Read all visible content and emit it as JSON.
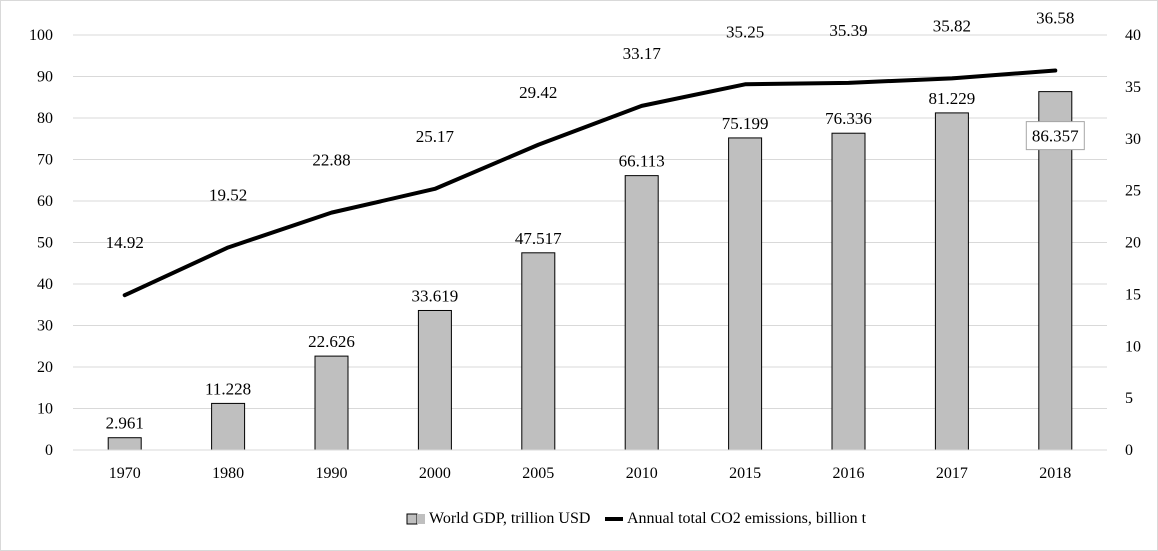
{
  "chart_data": {
    "type": "bar",
    "categories": [
      "1970",
      "1980",
      "1990",
      "2000",
      "2005",
      "2010",
      "2015",
      "2016",
      "2017",
      "2018"
    ],
    "series": [
      {
        "name": "World GDP, trillion USD",
        "type": "bar",
        "axis": "left",
        "values": [
          2.961,
          11.228,
          22.626,
          33.619,
          47.517,
          66.113,
          75.199,
          76.336,
          81.229,
          86.357
        ],
        "labels": [
          "2.961",
          "11.228",
          "22.626",
          "33.619",
          "47.517",
          "66.113",
          "75.199",
          "76.336",
          "81.229",
          "86.357"
        ],
        "color": "#bfbfbf"
      },
      {
        "name": "Annual total CO2 emissions, billion t",
        "type": "line",
        "axis": "right",
        "values": [
          14.92,
          19.52,
          22.88,
          25.17,
          29.42,
          33.17,
          35.25,
          35.39,
          35.82,
          36.58
        ],
        "labels": [
          "14.92",
          "19.52",
          "22.88",
          "25.17",
          "29.42",
          "33.17",
          "35.25",
          "35.39",
          "35.82",
          "36.58"
        ],
        "color": "#000000"
      }
    ],
    "title": "",
    "xlabel": "",
    "ylabel": "",
    "y_left": {
      "min": 0,
      "max": 100,
      "step": 10,
      "ticks": [
        "0",
        "10",
        "20",
        "30",
        "40",
        "50",
        "60",
        "70",
        "80",
        "90",
        "100"
      ]
    },
    "y_right": {
      "min": 0,
      "max": 40,
      "step": 5,
      "ticks": [
        "0",
        "5",
        "10",
        "15",
        "20",
        "25",
        "30",
        "35",
        "40"
      ]
    },
    "grid": true,
    "legend_position": "bottom",
    "colors": {
      "bar_fill": "#bfbfbf",
      "bar_stroke": "#000000",
      "line": "#000000",
      "grid": "#d9d9d9"
    }
  }
}
